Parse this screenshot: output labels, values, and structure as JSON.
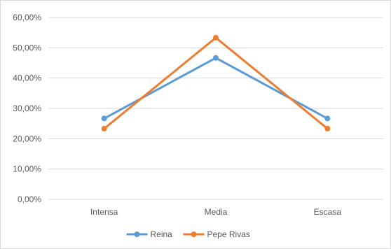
{
  "chart_data": {
    "type": "line",
    "categories": [
      "Intensa",
      "Media",
      "Escasa"
    ],
    "series": [
      {
        "name": "Reina",
        "values": [
          26.67,
          46.67,
          26.67
        ],
        "color": "#5b9bd5"
      },
      {
        "name": "Pepe Rivas",
        "values": [
          23.33,
          53.33,
          23.33
        ],
        "color": "#ed7d31"
      }
    ],
    "yticks": [
      "0,00%",
      "10,00%",
      "20,00%",
      "30,00%",
      "40,00%",
      "50,00%",
      "60,00%"
    ],
    "ylim": [
      0,
      60
    ],
    "grid": true,
    "legend_position": "bottom",
    "gridline_color": "#d9d9d9"
  }
}
